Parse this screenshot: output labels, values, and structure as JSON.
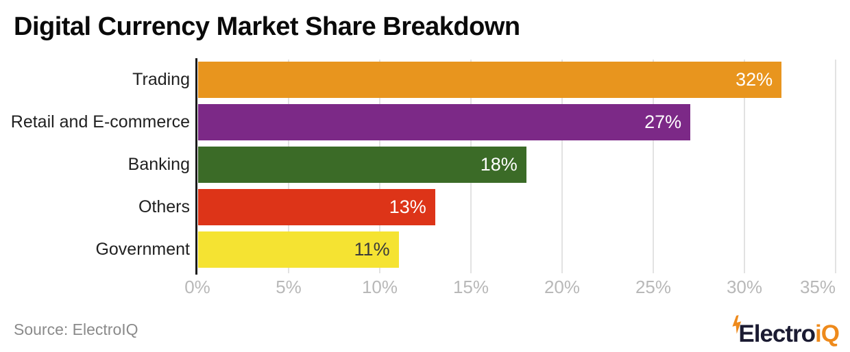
{
  "title": "Digital Currency Market Share Breakdown",
  "source_text": "Source: ElectroIQ",
  "logo": {
    "part1": "Electro",
    "part2": "iQ",
    "text_color": "#1b1b32",
    "accent_color": "#ee8a1c",
    "bolt_icon": "lightning-bolt"
  },
  "chart_data": {
    "type": "bar",
    "orientation": "horizontal",
    "title": "Digital Currency Market Share Breakdown",
    "xlabel": "",
    "ylabel": "",
    "categories": [
      "Trading",
      "Retail and E-commerce",
      "Banking",
      "Others",
      "Government"
    ],
    "values": [
      32,
      27,
      18,
      13,
      11
    ],
    "value_labels": [
      "32%",
      "27%",
      "18%",
      "13%",
      "11%"
    ],
    "bar_colors": [
      "#e8951e",
      "#7c2987",
      "#3b6b27",
      "#dd3418",
      "#f5e332"
    ],
    "value_label_colors": [
      "#ffffff",
      "#ffffff",
      "#ffffff",
      "#ffffff",
      "#3a3a3a"
    ],
    "xlim": [
      0,
      35
    ],
    "x_tick_values": [
      0,
      5,
      10,
      15,
      20,
      25,
      30,
      35
    ],
    "x_ticks": [
      "0%",
      "5%",
      "10%",
      "15%",
      "20%",
      "25%",
      "30%",
      "35%"
    ],
    "grid": true,
    "gridline_color": "#e2e2e2",
    "axis_line_color": "#1a1a1a",
    "tick_label_color": "#b8b8b8",
    "category_label_color": "#212121",
    "legend": "none",
    "background": "#ffffff"
  }
}
